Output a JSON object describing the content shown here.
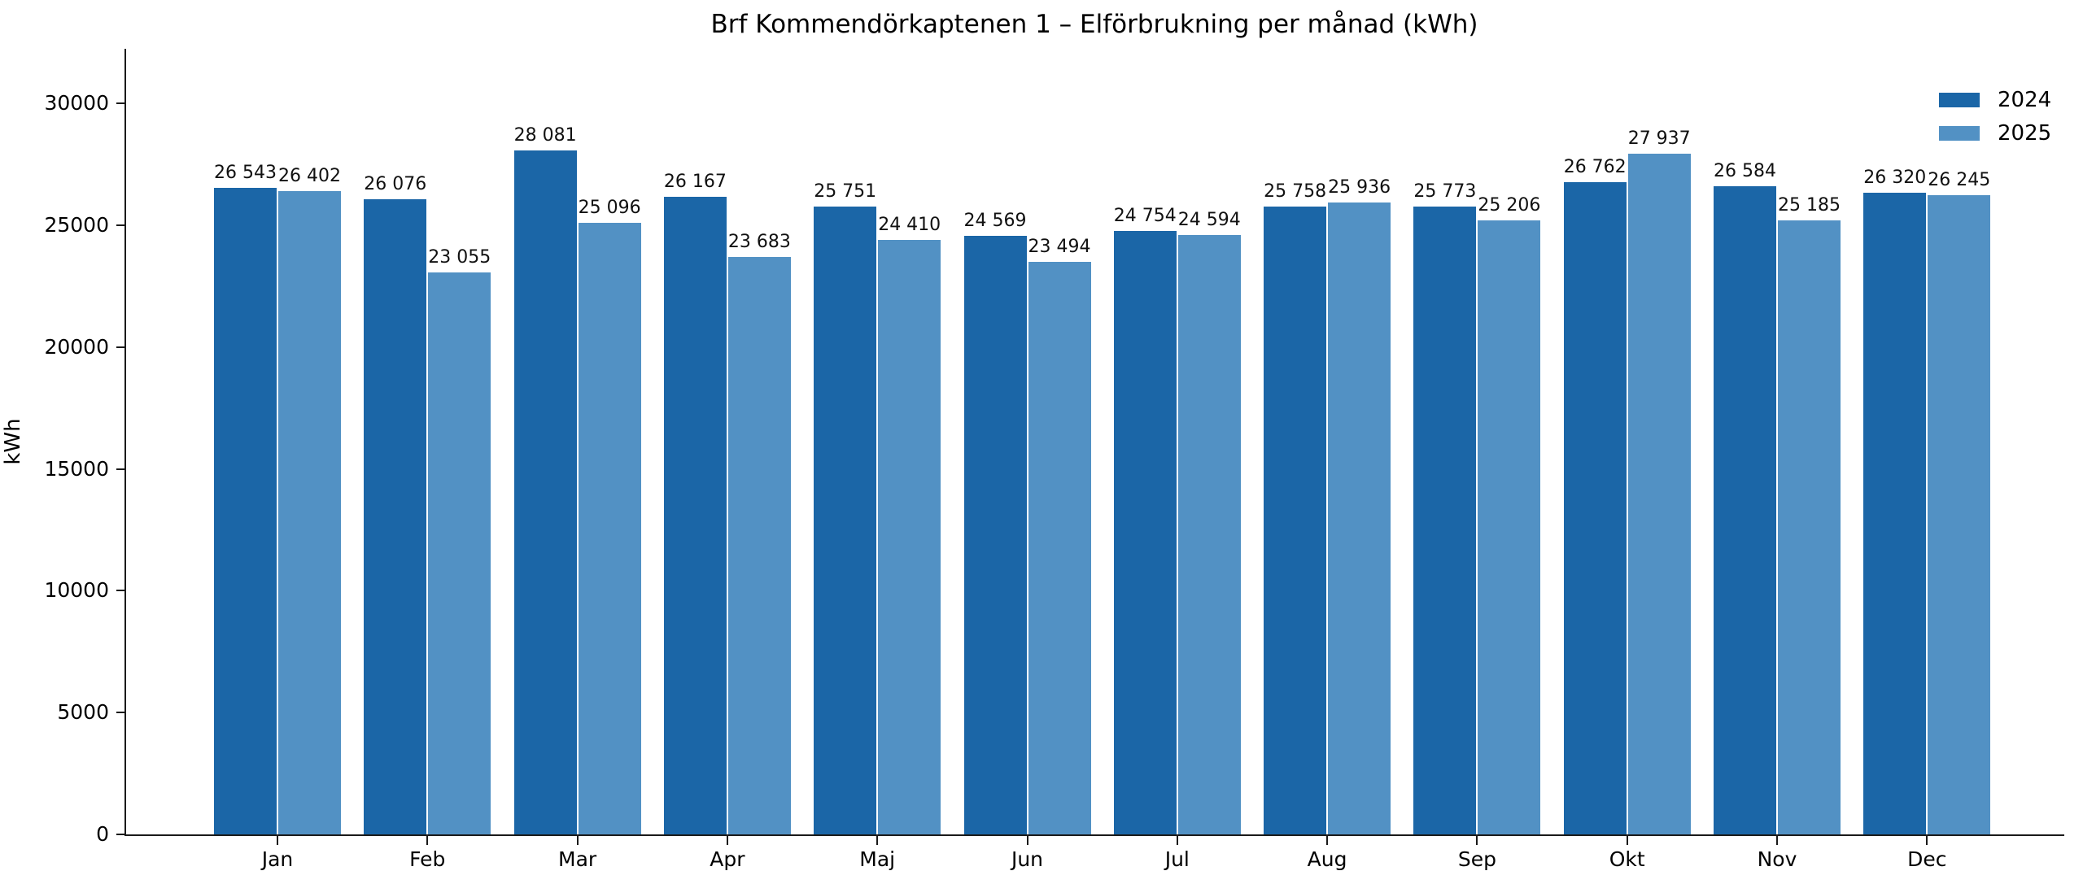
{
  "title": "Brf Kommendörkaptenen 1 – Elförbrukning per månad (kWh)",
  "chart_data": {
    "type": "bar",
    "title": "Brf Kommendörkaptenen 1 – Elförbrukning per månad (kWh)",
    "xlabel": "",
    "ylabel": "kWh",
    "categories": [
      "Jan",
      "Feb",
      "Mar",
      "Apr",
      "Maj",
      "Jun",
      "Jul",
      "Aug",
      "Sep",
      "Okt",
      "Nov",
      "Dec"
    ],
    "series": [
      {
        "name": "2024",
        "color": "#1b66a7",
        "values": [
          26543,
          26076,
          28081,
          26167,
          25751,
          24569,
          24754,
          25758,
          25773,
          26762,
          26584,
          26320
        ]
      },
      {
        "name": "2025",
        "color": "#5291c4",
        "values": [
          26402,
          23055,
          25096,
          23683,
          24410,
          23494,
          24594,
          25936,
          25206,
          27937,
          25185,
          26245
        ]
      }
    ],
    "yticks": [
      0,
      5000,
      10000,
      15000,
      20000,
      25000,
      30000
    ],
    "ylim": [
      0,
      32240
    ],
    "grid": false,
    "legend_position": "upper right",
    "value_labels_shown": true,
    "value_label_thousands_separator": " "
  }
}
